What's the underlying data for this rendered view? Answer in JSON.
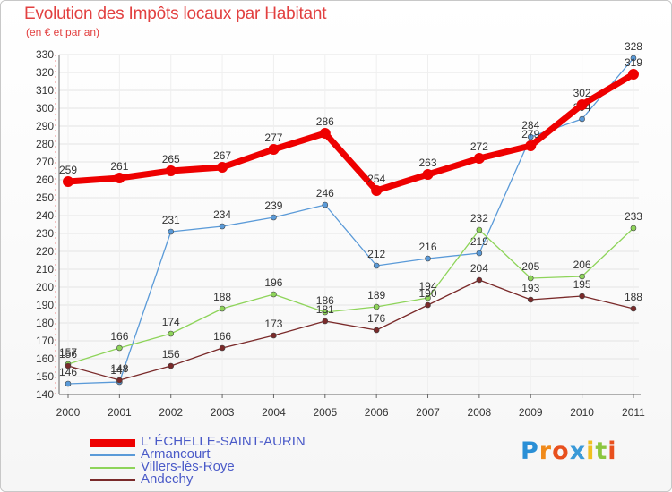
{
  "header": {
    "title": "Evolution des Impôts locaux par Habitant",
    "subtitle": "(en € et par an)"
  },
  "brand": {
    "letters": [
      "P",
      "r",
      "o",
      "x",
      "i",
      "t",
      "i"
    ],
    "colors": [
      "#2a8fd6",
      "#f08a1a",
      "#e8501e",
      "#3a9ad8",
      "#f0c020",
      "#8cc63f",
      "#e8501e"
    ]
  },
  "chart_data": {
    "type": "line",
    "x": [
      "2000",
      "2001",
      "2002",
      "2003",
      "2004",
      "2005",
      "2006",
      "2007",
      "2008",
      "2009",
      "2010",
      "2011"
    ],
    "ylim": [
      140,
      330
    ],
    "yticks": [
      140,
      150,
      160,
      170,
      180,
      190,
      200,
      210,
      220,
      230,
      240,
      250,
      260,
      270,
      280,
      290,
      300,
      310,
      320,
      330
    ],
    "series": [
      {
        "name": "Armancourt",
        "color": "#5a9ad8",
        "values": [
          146,
          147,
          231,
          234,
          239,
          246,
          212,
          216,
          219,
          284,
          294,
          328
        ]
      },
      {
        "name": "Villers-lès-Roye",
        "color": "#8ed45a",
        "values": [
          157,
          166,
          174,
          188,
          196,
          186,
          189,
          194,
          232,
          205,
          206,
          233
        ]
      },
      {
        "name": "Andechy",
        "color": "#7a2a2a",
        "values": [
          156,
          148,
          156,
          166,
          173,
          181,
          176,
          190,
          204,
          193,
          195,
          188
        ]
      },
      {
        "name": "L' ÉCHELLE-SAINT-AURIN",
        "color": "#ee0000",
        "values": [
          259,
          261,
          265,
          267,
          277,
          286,
          254,
          263,
          272,
          279,
          302,
          319
        ]
      }
    ],
    "legend": [
      "L' ÉCHELLE-SAINT-AURIN",
      "Armancourt",
      "Villers-lès-Roye",
      "Andechy"
    ]
  }
}
